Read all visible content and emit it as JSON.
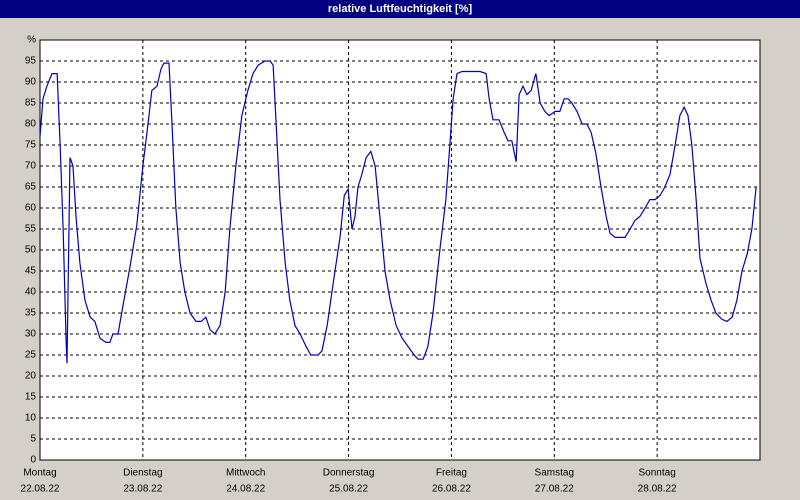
{
  "chart_data": {
    "type": "line",
    "title": "relative Luftfeuchtigkeit [%]",
    "color": "#0000c0",
    "grid": true,
    "xlim": [
      0,
      168
    ],
    "ylim": [
      0,
      100
    ],
    "xticks": [
      {
        "value": 0,
        "label": "Montag"
      },
      {
        "value": 24,
        "label": "Dienstag"
      },
      {
        "value": 48,
        "label": "Mittwoch"
      },
      {
        "value": 72,
        "label": "Donnerstag"
      },
      {
        "value": 96,
        "label": "Freitag"
      },
      {
        "value": 120,
        "label": "Samstag"
      },
      {
        "value": 144,
        "label": "Sonntag"
      }
    ],
    "xtick_dates": [
      "22.08.22",
      "23.08.22",
      "24.08.22",
      "25.08.22",
      "26.08.22",
      "27.08.22",
      "28.08.22"
    ],
    "yticks": [
      0,
      5,
      10,
      15,
      20,
      25,
      30,
      35,
      40,
      45,
      50,
      55,
      60,
      65,
      70,
      75,
      80,
      85,
      90,
      95,
      {
        "value": 100,
        "label": "%"
      }
    ],
    "x": [
      0,
      0.7,
      1.6,
      2.8,
      4.0,
      4.7,
      5.4,
      6.1,
      6.3,
      7.0,
      7.7,
      8.4,
      9.3,
      10.5,
      11.7,
      12.8,
      14.0,
      15.4,
      16.3,
      17.0,
      18.2,
      19.4,
      21.0,
      22.6,
      24.0,
      25.2,
      26.1,
      27.3,
      28.2,
      28.9,
      30.1,
      30.8,
      31.7,
      32.7,
      33.8,
      35.0,
      36.4,
      37.6,
      38.7,
      39.7,
      40.8,
      42.0,
      43.2,
      44.3,
      45.7,
      47.1,
      48.5,
      49.7,
      50.9,
      52.5,
      53.7,
      54.4,
      55.1,
      56.0,
      57.2,
      58.3,
      59.5,
      60.7,
      62.1,
      63.2,
      64.9,
      65.8,
      67.0,
      68.4,
      70.0,
      71.0,
      71.9,
      72.8,
      73.5,
      74.2,
      75.1,
      76.1,
      77.2,
      78.2,
      79.3,
      80.5,
      81.7,
      83.1,
      84.5,
      85.9,
      87.3,
      88.2,
      89.4,
      90.5,
      91.7,
      93.3,
      94.7,
      95.7,
      96.4,
      97.3,
      98.5,
      100.3,
      102.7,
      104.1,
      104.8,
      105.7,
      107.1,
      108.3,
      109.2,
      110.1,
      111.1,
      111.8,
      112.7,
      113.6,
      114.6,
      115.7,
      116.7,
      117.8,
      118.8,
      120.2,
      121.3,
      122.3,
      123.2,
      124.1,
      125.3,
      126.5,
      127.6,
      128.6,
      129.7,
      130.9,
      132.1,
      133.0,
      134.2,
      135.3,
      136.5,
      137.7,
      138.8,
      140.0,
      141.2,
      142.3,
      143.5,
      144.7,
      145.8,
      147.0,
      148.2,
      149.3,
      150.3,
      151.2,
      152.1,
      153.1,
      154.0,
      155.4,
      156.6,
      157.7,
      159.1,
      160.3,
      161.5,
      162.6,
      163.8,
      165.0,
      166.1,
      167.1
    ],
    "values": [
      77,
      86,
      89,
      92,
      92,
      75,
      55,
      28,
      23,
      72,
      70,
      58,
      47,
      38,
      34,
      33,
      29,
      28,
      28,
      30,
      30,
      37,
      46,
      56,
      70,
      80,
      88,
      89,
      93,
      94.5,
      94.5,
      80,
      60,
      47,
      40,
      35,
      33,
      33,
      34,
      31,
      30,
      32,
      40,
      55,
      70,
      82,
      88,
      92,
      94,
      95,
      95,
      94,
      80,
      62,
      47,
      38,
      32,
      30,
      27,
      25,
      25,
      26,
      32,
      42,
      53,
      63,
      64.5,
      55,
      58,
      65,
      68,
      72,
      73.5,
      70,
      58,
      45,
      38,
      32,
      29,
      27,
      25,
      24,
      24,
      27,
      35,
      50,
      62,
      76,
      86,
      92,
      92.5,
      92.5,
      92.5,
      92,
      86,
      81,
      81,
      78,
      76,
      76,
      71,
      87,
      89,
      87,
      88,
      92,
      85,
      83,
      82,
      83,
      83,
      86,
      86,
      85,
      83,
      80,
      80,
      78,
      73,
      65,
      58,
      54,
      53,
      53,
      53,
      55,
      57,
      58,
      60,
      62,
      62,
      63,
      65,
      68,
      75,
      82,
      84,
      82,
      75,
      62,
      48,
      42,
      38,
      35,
      33.5,
      33,
      34,
      38,
      45,
      49,
      55,
      65
    ]
  }
}
